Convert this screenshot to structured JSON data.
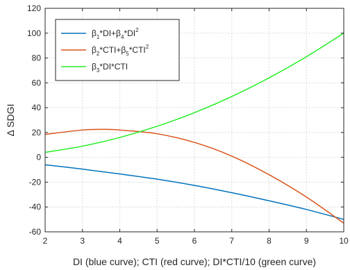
{
  "chart_data": {
    "type": "line",
    "xlabel": "DI (blue curve); CTI (red curve); DI*CTI/10 (green curve)",
    "ylabel": "Δ SDGI",
    "xlim": [
      2,
      10
    ],
    "ylim": [
      -60,
      120
    ],
    "xticks": [
      2,
      3,
      4,
      5,
      6,
      7,
      8,
      9,
      10
    ],
    "yticks": [
      -60,
      -40,
      -20,
      0,
      20,
      40,
      60,
      80,
      100,
      120
    ],
    "xtick_labels": [
      "2",
      "3",
      "4",
      "5",
      "6",
      "7",
      "8",
      "9",
      "10"
    ],
    "ytick_labels": [
      "-60",
      "-40",
      "-20",
      "0",
      "20",
      "40",
      "60",
      "80",
      "100",
      "120"
    ],
    "grid": true,
    "legend_position": "top-left",
    "series": [
      {
        "name": "β1*DI+β4*DI2",
        "legend_parts": [
          {
            "t": "β",
            "s": ""
          },
          {
            "t": "1",
            "s": "sub"
          },
          {
            "t": "*DI+β",
            "s": ""
          },
          {
            "t": "4",
            "s": "sub"
          },
          {
            "t": "*DI",
            "s": ""
          },
          {
            "t": "2",
            "s": "sup"
          }
        ],
        "color": "#0072bd",
        "x": [
          2,
          3,
          4,
          5,
          6,
          7,
          8,
          9,
          10
        ],
        "y": [
          -6,
          -9.5,
          -13.4,
          -17.6,
          -22.6,
          -28.5,
          -35,
          -42,
          -50
        ]
      },
      {
        "name": "β2*CTI+β5*CTI2",
        "legend_parts": [
          {
            "t": "β",
            "s": ""
          },
          {
            "t": "2",
            "s": "sub"
          },
          {
            "t": "*CTI+β",
            "s": ""
          },
          {
            "t": "5",
            "s": "sub"
          },
          {
            "t": "*CTI",
            "s": ""
          },
          {
            "t": "2",
            "s": "sup"
          }
        ],
        "color": "#d95319",
        "x": [
          2,
          3,
          3.6,
          4,
          5,
          6,
          7,
          8,
          9,
          10
        ],
        "y": [
          18.5,
          22,
          22.5,
          22,
          19,
          12,
          1,
          -14,
          -32,
          -53
        ]
      },
      {
        "name": "β3*DI*CTI",
        "legend_parts": [
          {
            "t": "β",
            "s": ""
          },
          {
            "t": "3",
            "s": "sub"
          },
          {
            "t": "*DI*CTI",
            "s": ""
          }
        ],
        "color": "#22ee22",
        "x": [
          2,
          3,
          4,
          5,
          6,
          7,
          8,
          9,
          10
        ],
        "y": [
          4,
          9,
          16,
          25,
          36,
          49,
          64,
          81,
          100
        ]
      }
    ]
  }
}
